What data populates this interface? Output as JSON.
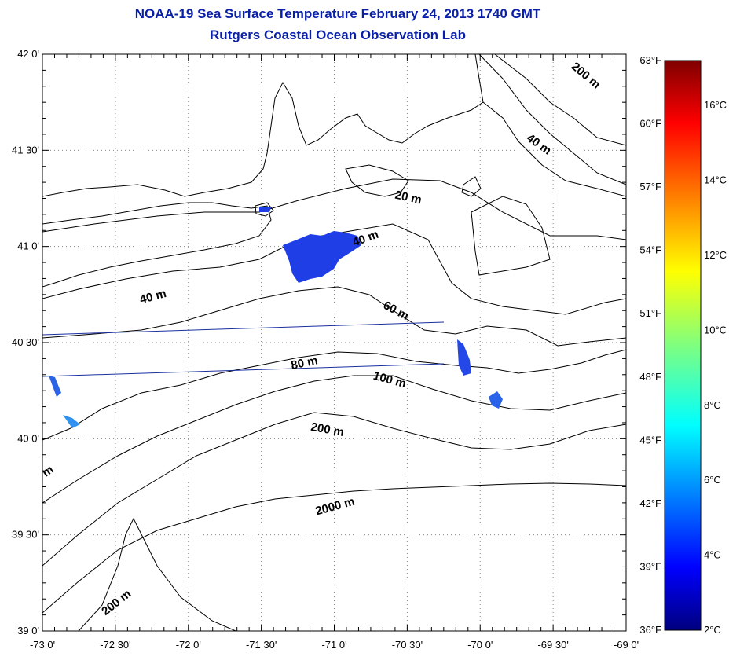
{
  "title": "NOAA-19 Sea Surface Temperature February 24, 2013 1740 GMT",
  "subtitle": "Rutgers Coastal Ocean Observation Lab",
  "map": {
    "lat_labels": [
      "42 0'",
      "41 30'",
      "41 0'",
      "40 30'",
      "40 0'",
      "39 30'",
      "39 0'"
    ],
    "lon_labels": [
      "-73 0'",
      "-72 30'",
      "-72 0'",
      "-71 30'",
      "-71 0'",
      "-70 30'",
      "-70 0'",
      "-69 30'",
      "-69 0'"
    ],
    "lat_range": [
      39,
      42
    ],
    "lon_range": [
      -73,
      -69
    ],
    "grid": true,
    "depth_labels": [
      "200 m",
      "40 m",
      "20 m",
      "40 m",
      "40 m",
      "60 m",
      "80 m",
      "100 m",
      "200 m",
      "2000 m",
      "200 m",
      "m"
    ],
    "colors": {
      "coast": "#000000",
      "title": "#0a1fa8",
      "track_line": "#1a2fa0",
      "sst_patch": "#1f3ee6"
    }
  },
  "colorbar": {
    "f_labels": [
      "63°F",
      "60°F",
      "57°F",
      "54°F",
      "51°F",
      "48°F",
      "45°F",
      "42°F",
      "39°F",
      "36°F"
    ],
    "c_labels": [
      "16°C",
      "14°C",
      "12°C",
      "10°C",
      "8°C",
      "6°C",
      "4°C",
      "2°C"
    ],
    "c_range": [
      2,
      17.2
    ],
    "colormap": "jet"
  }
}
